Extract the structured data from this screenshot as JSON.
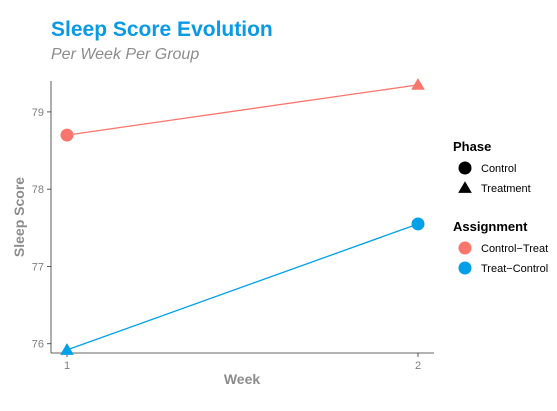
{
  "chart_data": {
    "type": "line",
    "title": "Sleep Score Evolution",
    "subtitle": "Per Week Per Group",
    "xlabel": "Week",
    "ylabel": "Sleep Score",
    "x": [
      1,
      2
    ],
    "x_ticks": [
      "1",
      "2"
    ],
    "y_ticks": [
      76,
      77,
      78,
      79
    ],
    "ylim": [
      75.88,
      79.4
    ],
    "grid": false,
    "legend_position": "right",
    "series": [
      {
        "name": "Control−Treat",
        "color": "#F8766D",
        "values": [
          78.7,
          79.35
        ],
        "phases": [
          "Control",
          "Treatment"
        ]
      },
      {
        "name": "Treat−Control",
        "color": "#00A0E8",
        "values": [
          75.92,
          77.55
        ],
        "phases": [
          "Treatment",
          "Control"
        ]
      }
    ],
    "legends": [
      {
        "title": "Phase",
        "items": [
          {
            "label": "Control",
            "shape": "circle",
            "color": "#000000"
          },
          {
            "label": "Treatment",
            "shape": "triangle",
            "color": "#000000"
          }
        ]
      },
      {
        "title": "Assignment",
        "items": [
          {
            "label": "Control−Treat",
            "shape": "circle",
            "color": "#F8766D"
          },
          {
            "label": "Treat−Control",
            "shape": "circle",
            "color": "#00A0E8"
          }
        ]
      }
    ],
    "title_color": "#0A99E5"
  }
}
